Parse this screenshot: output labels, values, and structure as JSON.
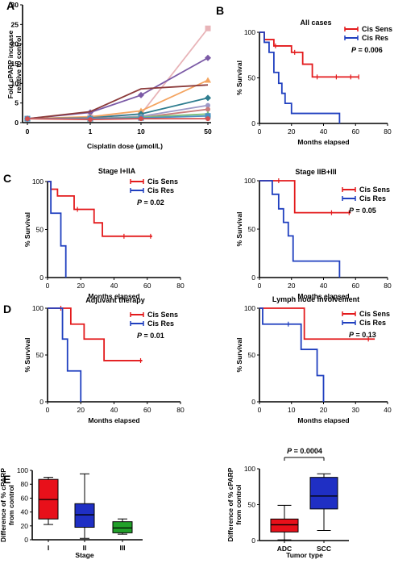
{
  "chart_data": [
    {
      "id": "A",
      "type": "line",
      "panel_letter": "A",
      "ylabel": [
        "Fold cPARP increase",
        "relative to control"
      ],
      "xlabel": "Cisplatin dose (μmol/L)",
      "categories": [
        "0",
        "1",
        "10",
        "50"
      ],
      "ylim": [
        0,
        30
      ],
      "yticks": [
        0,
        5,
        10,
        15,
        20,
        25,
        30
      ],
      "series": [
        {
          "color": "#e8b4b8",
          "marker": "square",
          "values": [
            1,
            1.4,
            2.2,
            24
          ]
        },
        {
          "color": "#7b5aa6",
          "marker": "diamond",
          "values": [
            1,
            2.6,
            7.0,
            16.5
          ]
        },
        {
          "color": "#f4a460",
          "marker": "triangle",
          "values": [
            1,
            1.5,
            3.0,
            10.8
          ]
        },
        {
          "color": "#8b3a3a",
          "marker": "none",
          "values": [
            1,
            2.8,
            8.6,
            9.6
          ]
        },
        {
          "color": "#2e7d8f",
          "marker": "diamond",
          "values": [
            1,
            1.2,
            2.2,
            6.3
          ]
        },
        {
          "color": "#9e9ac8",
          "marker": "circle",
          "values": [
            1,
            1.0,
            1.6,
            4.4
          ]
        },
        {
          "color": "#c97b7b",
          "marker": "circle",
          "values": [
            1,
            1.1,
            1.3,
            3.4
          ]
        },
        {
          "color": "#7fbf7b",
          "marker": "triangle",
          "values": [
            1,
            0.9,
            1.4,
            2.2
          ]
        },
        {
          "color": "#4a90c2",
          "marker": "square",
          "values": [
            1,
            1.0,
            1.2,
            1.7
          ]
        },
        {
          "color": "#d45050",
          "marker": "circle",
          "values": [
            1,
            0.8,
            1.0,
            1.0
          ]
        }
      ]
    },
    {
      "id": "B",
      "type": "line",
      "panel_letter": "B",
      "title": "All cases",
      "xlabel": "Months elapsed",
      "ylabel": "% Survival",
      "xlim": [
        0,
        80
      ],
      "ylim": [
        0,
        100
      ],
      "xticks": [
        0,
        20,
        40,
        60,
        80
      ],
      "yticks": [
        0,
        50,
        100
      ],
      "legend": [
        "Cis Sens",
        "Cis Res"
      ],
      "pvalue": "= 0.006",
      "series": [
        {
          "name": "Cis Sens",
          "color": "#e31a1c",
          "x": [
            0,
            3,
            3,
            9,
            9,
            20,
            20,
            27,
            27,
            33,
            33,
            62
          ],
          "y": [
            100,
            100,
            92,
            92,
            85,
            85,
            78,
            78,
            65,
            65,
            51,
            51
          ],
          "censor": [
            [
              10,
              85
            ],
            [
              22,
              78
            ],
            [
              36,
              51
            ],
            [
              48,
              51
            ],
            [
              57,
              51
            ],
            [
              62,
              51
            ]
          ]
        },
        {
          "name": "Cis Res",
          "color": "#1f3fbf",
          "x": [
            0,
            3,
            3,
            6,
            6,
            9,
            9,
            12,
            12,
            14,
            14,
            16,
            16,
            20,
            20,
            50,
            50
          ],
          "y": [
            100,
            100,
            89,
            89,
            78,
            78,
            56,
            56,
            44,
            44,
            33,
            33,
            22,
            22,
            11,
            11,
            0
          ],
          "censor": []
        }
      ]
    },
    {
      "id": "C1",
      "type": "line",
      "panel_letter": "C",
      "title": "Stage I+IIA",
      "xlabel": "Months elapsed",
      "ylabel": "% Survival",
      "xlim": [
        0,
        80
      ],
      "ylim": [
        0,
        100
      ],
      "xticks": [
        0,
        20,
        40,
        60,
        80
      ],
      "yticks": [
        0,
        50,
        100
      ],
      "legend": [
        "Cis Sens",
        "Cis Res"
      ],
      "pvalue": "= 0.02",
      "series": [
        {
          "name": "Cis Sens",
          "color": "#e31a1c",
          "x": [
            0,
            2,
            2,
            6,
            6,
            16,
            16,
            28,
            28,
            33,
            33,
            63
          ],
          "y": [
            100,
            100,
            92,
            92,
            85,
            85,
            71,
            71,
            57,
            57,
            43,
            43
          ],
          "censor": [
            [
              18,
              71
            ],
            [
              46,
              43
            ],
            [
              62,
              43
            ]
          ]
        },
        {
          "name": "Cis Res",
          "color": "#1f3fbf",
          "x": [
            0,
            2,
            2,
            8,
            8,
            11,
            11
          ],
          "y": [
            100,
            100,
            67,
            67,
            33,
            33,
            0
          ],
          "censor": []
        }
      ]
    },
    {
      "id": "C2",
      "type": "line",
      "title": "Stage IIB+III",
      "xlabel": "Months elapsed",
      "ylabel": "% Survival",
      "xlim": [
        0,
        80
      ],
      "ylim": [
        0,
        100
      ],
      "xticks": [
        0,
        20,
        40,
        60,
        80
      ],
      "yticks": [
        0,
        50,
        100
      ],
      "legend": [
        "Cis Sens",
        "Cis Res"
      ],
      "pvalue": "= 0.05",
      "series": [
        {
          "name": "Cis Sens",
          "color": "#e31a1c",
          "x": [
            0,
            22,
            22,
            57
          ],
          "y": [
            100,
            100,
            67,
            67
          ],
          "censor": [
            [
              12,
              100
            ],
            [
              45,
              67
            ],
            [
              56,
              67
            ]
          ]
        },
        {
          "name": "Cis Res",
          "color": "#1f3fbf",
          "x": [
            0,
            8,
            8,
            12,
            12,
            15,
            15,
            18,
            18,
            21,
            21,
            50,
            50
          ],
          "y": [
            100,
            100,
            86,
            86,
            71,
            71,
            57,
            57,
            43,
            43,
            17,
            17,
            0
          ],
          "censor": []
        }
      ]
    },
    {
      "id": "D1",
      "type": "line",
      "panel_letter": "D",
      "title": "Adjuvant therapy",
      "xlabel": "Months elapsed",
      "ylabel": "% Survival",
      "xlim": [
        0,
        80
      ],
      "ylim": [
        0,
        100
      ],
      "xticks": [
        0,
        20,
        40,
        60,
        80
      ],
      "yticks": [
        0,
        50,
        100
      ],
      "legend": [
        "Cis Sens",
        "Cis Res"
      ],
      "pvalue": "= 0.01",
      "series": [
        {
          "name": "Cis Sens",
          "color": "#e31a1c",
          "x": [
            0,
            14,
            14,
            22,
            22,
            34,
            34,
            57
          ],
          "y": [
            100,
            100,
            83,
            83,
            67,
            67,
            44,
            44
          ],
          "censor": [
            [
              8,
              100
            ],
            [
              56,
              44
            ]
          ]
        },
        {
          "name": "Cis Res",
          "color": "#1f3fbf",
          "x": [
            0,
            9,
            9,
            12,
            12,
            20,
            20
          ],
          "y": [
            100,
            100,
            67,
            67,
            33,
            33,
            0
          ],
          "censor": []
        }
      ]
    },
    {
      "id": "D2",
      "type": "line",
      "title": "Lymph node involvement",
      "xlabel": "Months elapsed",
      "ylabel": "% Survival",
      "xlim": [
        0,
        40
      ],
      "ylim": [
        0,
        100
      ],
      "xticks": [
        0,
        10,
        20,
        30,
        40
      ],
      "yticks": [
        0,
        50,
        100
      ],
      "legend": [
        "Cis Sens",
        "Cis Res"
      ],
      "pvalue": "= 0.13",
      "series": [
        {
          "name": "Cis Sens",
          "color": "#e31a1c",
          "x": [
            0,
            14,
            14,
            36
          ],
          "y": [
            100,
            100,
            67,
            67
          ],
          "censor": [
            [
              34,
              67
            ]
          ]
        },
        {
          "name": "Cis Res",
          "color": "#1f3fbf",
          "x": [
            0,
            1,
            1,
            13,
            13,
            18,
            18,
            20,
            20
          ],
          "y": [
            100,
            100,
            83,
            83,
            56,
            56,
            28,
            28,
            0
          ],
          "censor": [
            [
              9,
              83
            ]
          ]
        }
      ]
    },
    {
      "id": "E1",
      "type": "box",
      "panel_letter": "E",
      "ylabel": [
        "Difference of % cPARP",
        "from control"
      ],
      "xlabel": "Stage",
      "categories": [
        "I",
        "II",
        "III"
      ],
      "ylim": [
        0,
        100
      ],
      "yticks": [
        0,
        20,
        40,
        60,
        80,
        100
      ],
      "boxes": [
        {
          "label": "I",
          "color": "#e8101a",
          "min": 22,
          "q1": 30,
          "median": 58,
          "q3": 87,
          "max": 90
        },
        {
          "label": "II",
          "color": "#1f2fc4",
          "min": 2,
          "q1": 18,
          "median": 36,
          "q3": 52,
          "max": 95
        },
        {
          "label": "III",
          "color": "#22a02a",
          "min": 8,
          "q1": 10,
          "median": 17,
          "q3": 26,
          "max": 30
        }
      ]
    },
    {
      "id": "E2",
      "type": "box",
      "ylabel": [
        "Difference of % cPARP",
        "from control"
      ],
      "xlabel": "Tumor type",
      "categories": [
        "ADC",
        "SCC"
      ],
      "ylim": [
        0,
        100
      ],
      "yticks": [
        0,
        50,
        100
      ],
      "pvalue": "= 0.0004",
      "boxes": [
        {
          "label": "ADC",
          "color": "#e8101a",
          "min": 1,
          "q1": 12,
          "median": 22,
          "q3": 30,
          "max": 49
        },
        {
          "label": "SCC",
          "color": "#1f2fc4",
          "min": 14,
          "q1": 44,
          "median": 62,
          "q3": 88,
          "max": 93
        }
      ]
    }
  ]
}
